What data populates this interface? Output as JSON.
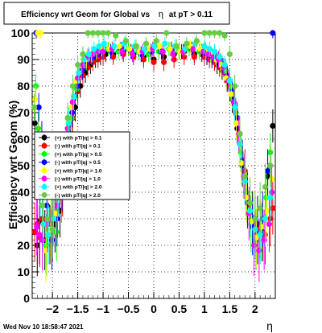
{
  "chart_data": {
    "type": "scatter",
    "title": "Efficiency wrt Geom for Global vs η at pT > 0.11",
    "title_parts": [
      "Efficiency wrt Geom for Global vs",
      "η",
      "at pT > 0.11"
    ],
    "xlabel": "η",
    "ylabel": "Efficiency wrt Geom (%)",
    "xlim": [
      -2.4,
      2.4
    ],
    "ylim": [
      0,
      100
    ],
    "x_ticks": [
      -2,
      -1.5,
      -1,
      -0.5,
      0,
      0.5,
      1,
      1.5,
      2
    ],
    "x_tick_labels": [
      "−2",
      "−1.5",
      "−1",
      "−0.5",
      "0",
      "0.5",
      "1",
      "1.5",
      "2"
    ],
    "y_ticks": [
      0,
      10,
      20,
      30,
      40,
      50,
      60,
      70,
      80,
      90,
      100
    ],
    "y_tick_labels": [
      "0",
      "10",
      "20",
      "30",
      "40",
      "50",
      "60",
      "70",
      "80",
      "90",
      "100"
    ],
    "grid": true,
    "legend_position": "center-left",
    "footer": "Wed Nov 10 18:58:47 2021",
    "series": [
      {
        "name": "(+) with pT/|q| > 0.1",
        "color": "#000000",
        "marker": "circle",
        "x": [
          -2.35,
          -2.3,
          -2.25,
          -2.2,
          -2.15,
          -2.05,
          -1.95,
          -1.85,
          -1.75,
          -1.65,
          -1.55,
          -1.45,
          -1.35,
          -1.25,
          -1.15,
          -1.05,
          -0.95,
          -0.8,
          -0.6,
          -0.4,
          -0.2,
          0,
          0.2,
          0.4,
          0.6,
          0.8,
          0.95,
          1.05,
          1.15,
          1.25,
          1.35,
          1.45,
          1.55,
          1.65,
          1.75,
          1.85,
          1.95,
          2.05,
          2.15,
          2.25,
          2.3,
          2.35
        ],
        "y": [
          66,
          20,
          29,
          35,
          22,
          24,
          28,
          33,
          52,
          60,
          72,
          80,
          85,
          88,
          90,
          91,
          92,
          92,
          93,
          92,
          91,
          90,
          91,
          92,
          93,
          92,
          92,
          91,
          90,
          88,
          86,
          82,
          75,
          64,
          50,
          38,
          30,
          28,
          25,
          46,
          50,
          65
        ]
      },
      {
        "name": "(-) with pT/|q| > 0.1",
        "color": "#ff0000",
        "marker": "circle",
        "x": [
          -2.35,
          -2.3,
          -2.25,
          -2.2,
          -2.1,
          -2,
          -1.9,
          -1.8,
          -1.7,
          -1.6,
          -1.5,
          -1.4,
          -1.3,
          -1.2,
          -1.1,
          -1,
          -0.8,
          -0.6,
          -0.4,
          -0.2,
          0,
          0.2,
          0.4,
          0.6,
          0.8,
          1,
          1.1,
          1.2,
          1.3,
          1.4,
          1.5,
          1.6,
          1.7,
          1.8,
          1.9,
          2,
          2.1,
          2.2,
          2.3,
          2.35
        ],
        "y": [
          25,
          28,
          23,
          30,
          28,
          25,
          33,
          40,
          58,
          68,
          78,
          84,
          87,
          89,
          90,
          91,
          91,
          92,
          91,
          90,
          89,
          89,
          90,
          91,
          91,
          91,
          90,
          89,
          87,
          85,
          80,
          72,
          62,
          48,
          35,
          28,
          26,
          24,
          30,
          34
        ]
      },
      {
        "name": "(+) with pT/|q| > 0.5",
        "color": "#00ff00",
        "marker": "circle",
        "x": [
          -2.33,
          -2.28,
          -2.22,
          -2.12,
          -2.02,
          -1.92,
          -1.82,
          -1.72,
          -1.62,
          -1.52,
          -1.42,
          -1.32,
          -1.22,
          -1.12,
          -1.02,
          -0.9,
          -0.7,
          -0.5,
          -0.3,
          -0.1,
          0.1,
          0.3,
          0.5,
          0.7,
          0.9,
          1.02,
          1.12,
          1.22,
          1.32,
          1.42,
          1.52,
          1.62,
          1.72,
          1.82,
          1.92,
          2.02,
          2.12,
          2.22,
          2.3
        ],
        "y": [
          80,
          64,
          47,
          20,
          30,
          25,
          38,
          56,
          68,
          79,
          86,
          89,
          91,
          92,
          93,
          94,
          93,
          94,
          93,
          92,
          93,
          94,
          93,
          94,
          93,
          94,
          92,
          91,
          89,
          86,
          79,
          70,
          55,
          40,
          28,
          22,
          25,
          38,
          55
        ]
      },
      {
        "name": "(-) with pT/|q| > 0.5",
        "color": "#0000ff",
        "marker": "circle",
        "x": [
          -2.32,
          -2.27,
          -2.21,
          -2.11,
          -2.01,
          -1.91,
          -1.81,
          -1.71,
          -1.61,
          -1.51,
          -1.41,
          -1.31,
          -1.21,
          -1.11,
          -1.01,
          -0.85,
          -0.65,
          -0.45,
          -0.25,
          -0.05,
          0.15,
          0.35,
          0.55,
          0.75,
          0.95,
          1.05,
          1.15,
          1.25,
          1.35,
          1.45,
          1.55,
          1.65,
          1.75,
          1.85,
          1.95,
          2.05,
          2.15,
          2.25,
          2.35
        ],
        "y": [
          100,
          72,
          60,
          35,
          22,
          30,
          42,
          60,
          70,
          80,
          86,
          89,
          91,
          92,
          93,
          93,
          94,
          93,
          92,
          93,
          93,
          94,
          93,
          94,
          93,
          92,
          91,
          90,
          88,
          84,
          78,
          68,
          52,
          36,
          27,
          24,
          30,
          48,
          100
        ]
      },
      {
        "name": "(+) with pT/|q| > 1.0",
        "color": "#ffff00",
        "marker": "circle",
        "x": [
          -2.34,
          -2.29,
          -2.23,
          -2.13,
          -2.03,
          -1.93,
          -1.83,
          -1.73,
          -1.63,
          -1.53,
          -1.43,
          -1.33,
          -1.23,
          -1.13,
          -1.03,
          -0.88,
          -0.68,
          -0.48,
          -0.28,
          -0.08,
          0.12,
          0.32,
          0.52,
          0.72,
          0.92,
          1.03,
          1.13,
          1.23,
          1.33,
          1.43,
          1.53,
          1.63,
          1.73,
          1.83,
          1.93,
          2.03,
          2.13,
          2.23,
          2.33
        ],
        "y": [
          75,
          100,
          100,
          18,
          26,
          32,
          45,
          62,
          72,
          82,
          88,
          90,
          92,
          93,
          94,
          94,
          95,
          94,
          93,
          94,
          95,
          94,
          93,
          95,
          94,
          93,
          92,
          90,
          88,
          83,
          77,
          66,
          51,
          38,
          29,
          23,
          27,
          33,
          45
        ]
      },
      {
        "name": "(-) with pT/|q| > 1.0",
        "color": "#ff00ff",
        "marker": "circle",
        "x": [
          -2.31,
          -2.26,
          -2.2,
          -2.1,
          -2,
          -1.9,
          -1.8,
          -1.7,
          -1.6,
          -1.5,
          -1.4,
          -1.3,
          -1.2,
          -1.1,
          -1,
          -0.82,
          -0.62,
          -0.42,
          -0.22,
          -0.02,
          0.18,
          0.38,
          0.58,
          0.78,
          0.98,
          1.08,
          1.18,
          1.28,
          1.38,
          1.48,
          1.58,
          1.68,
          1.78,
          1.88,
          1.98,
          2.08,
          2.18,
          2.28,
          2.33
        ],
        "y": [
          27,
          24,
          22,
          28,
          30,
          35,
          48,
          64,
          74,
          83,
          88,
          91,
          92,
          93,
          93,
          94,
          93,
          92,
          93,
          94,
          93,
          92,
          93,
          94,
          93,
          92,
          91,
          90,
          87,
          82,
          74,
          62,
          46,
          32,
          20,
          18,
          22,
          28,
          40
        ]
      },
      {
        "name": "(+) with pT/|q| > 2.0",
        "color": "#00ffff",
        "marker": "circle",
        "x": [
          -2.3,
          -2.24,
          -2.18,
          -2.08,
          -1.98,
          -1.88,
          -1.78,
          -1.68,
          -1.58,
          -1.48,
          -1.38,
          -1.28,
          -1.18,
          -1.08,
          -0.98,
          -0.78,
          -0.58,
          -0.38,
          -0.18,
          0.02,
          0.22,
          0.42,
          0.62,
          0.82,
          1,
          1.1,
          1.2,
          1.3,
          1.4,
          1.5,
          1.6,
          1.7,
          1.8,
          1.9,
          2,
          2.1,
          2.2,
          2.3
        ],
        "y": [
          55,
          40,
          28,
          24,
          30,
          40,
          52,
          66,
          76,
          85,
          90,
          92,
          94,
          95,
          96,
          95,
          96,
          95,
          94,
          95,
          96,
          95,
          94,
          96,
          95,
          94,
          93,
          91,
          88,
          82,
          72,
          58,
          44,
          33,
          26,
          24,
          30,
          38
        ]
      },
      {
        "name": "(-) with pT/|q| > 2.0",
        "color": "#66cc44",
        "marker": "circle",
        "x": [
          -2.36,
          -2.28,
          -2.2,
          -2.1,
          -2,
          -1.9,
          -1.8,
          -1.7,
          -1.6,
          -1.5,
          -1.4,
          -1.3,
          -1.2,
          -1.1,
          -1,
          -0.9,
          -0.75,
          -0.55,
          -0.35,
          -0.15,
          0.05,
          0.25,
          0.45,
          0.65,
          0.85,
          1,
          1.1,
          1.2,
          1.3,
          1.4,
          1.5,
          1.6,
          1.7,
          1.8,
          1.9,
          2,
          2.1,
          2.2,
          2.3
        ],
        "y": [
          72,
          60,
          35,
          30,
          26,
          38,
          50,
          68,
          80,
          88,
          92,
          100,
          100,
          100,
          100,
          100,
          99,
          97,
          95,
          96,
          97,
          100,
          95,
          96,
          97,
          100,
          100,
          100,
          100,
          99,
          92,
          80,
          62,
          46,
          36,
          30,
          34,
          42,
          50
        ]
      }
    ]
  }
}
